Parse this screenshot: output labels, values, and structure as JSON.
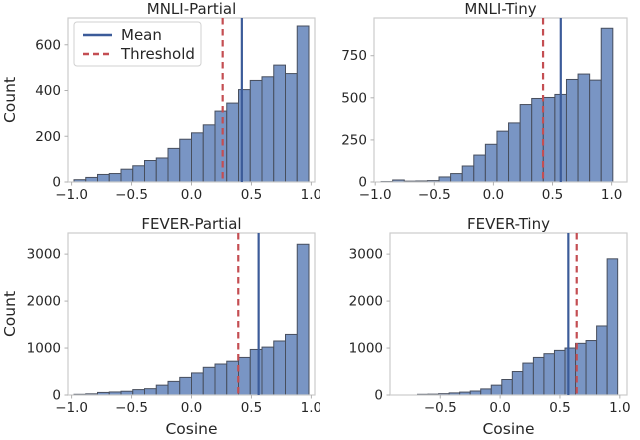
{
  "colors": {
    "bar_fill": "#7995c4",
    "bar_edge": "#474e5d",
    "mean": "#3b5b99",
    "threshold": "#c44e52",
    "text": "#262626",
    "spine": "#cccccc",
    "tick": "#b0b0b0",
    "legend_border": "#d0d0d0",
    "background": "#ffffff"
  },
  "labels": {
    "ylabel": "Count",
    "xlabel": "Cosine"
  },
  "legend": {
    "items": [
      {
        "label": "Mean",
        "style": "solid",
        "color_key": "mean"
      },
      {
        "label": "Threshold",
        "style": "dashed",
        "color_key": "threshold"
      }
    ]
  },
  "chart_data": [
    {
      "type": "bar",
      "title": "MNLI-Partial",
      "xlabel_shown": false,
      "ylabel_shown": true,
      "legend_shown": true,
      "xlim": [
        -1.03,
        1.03
      ],
      "ylim": [
        0,
        717
      ],
      "xticks": [
        -1.0,
        -0.5,
        0.0,
        0.5,
        1.0
      ],
      "xtick_labels": [
        "−1.0",
        "−0.5",
        "0.0",
        "0.5",
        "1.0"
      ],
      "yticks": [
        0,
        200,
        400,
        600
      ],
      "ytick_labels": [
        "0",
        "200",
        "400",
        "600"
      ],
      "bin_start": -0.98,
      "bin_width": 0.098,
      "counts": [
        10,
        20,
        33,
        37,
        56,
        71,
        94,
        105,
        147,
        187,
        215,
        250,
        310,
        345,
        404,
        444,
        460,
        511,
        474,
        682
      ],
      "mean": 0.42,
      "threshold": 0.26
    },
    {
      "type": "bar",
      "title": "MNLI-Tiny",
      "xlabel_shown": false,
      "ylabel_shown": false,
      "legend_shown": false,
      "xlim": [
        -1.01,
        1.13
      ],
      "ylim": [
        0,
        974
      ],
      "xticks": [
        -1.0,
        -0.5,
        0.0,
        0.5,
        1.0
      ],
      "xtick_labels": [
        "−1.0",
        "−0.5",
        "0.0",
        "0.5",
        "1.0"
      ],
      "yticks": [
        0,
        250,
        500,
        750
      ],
      "ytick_labels": [
        "0",
        "250",
        "500",
        "750"
      ],
      "bin_start": -0.95,
      "bin_width": 0.098,
      "counts": [
        3,
        12,
        5,
        6,
        8,
        30,
        50,
        95,
        160,
        224,
        302,
        351,
        460,
        496,
        502,
        520,
        609,
        641,
        605,
        913
      ],
      "mean": 0.57,
      "threshold": 0.42
    },
    {
      "type": "bar",
      "title": "FEVER-Partial",
      "xlabel_shown": true,
      "ylabel_shown": true,
      "legend_shown": false,
      "xlim": [
        -1.03,
        1.03
      ],
      "ylim": [
        0,
        3450
      ],
      "xticks": [
        -1.0,
        -0.5,
        0.0,
        0.5,
        1.0
      ],
      "xtick_labels": [
        "−1.0",
        "−0.5",
        "0.0",
        "0.5",
        "1.0"
      ],
      "yticks": [
        0,
        1000,
        2000,
        3000
      ],
      "ytick_labels": [
        "0",
        "1000",
        "2000",
        "3000"
      ],
      "bin_start": -0.98,
      "bin_width": 0.098,
      "counts": [
        15,
        25,
        55,
        65,
        80,
        115,
        135,
        210,
        290,
        375,
        470,
        590,
        660,
        720,
        800,
        970,
        1020,
        1150,
        1290,
        3210
      ],
      "mean": 0.56,
      "threshold": 0.39
    },
    {
      "type": "bar",
      "title": "FEVER-Tiny",
      "xlabel_shown": true,
      "ylabel_shown": false,
      "legend_shown": false,
      "xlim": [
        -0.92,
        1.06
      ],
      "ylim": [
        0,
        3450
      ],
      "xticks": [
        -0.5,
        0.0,
        0.5,
        1.0
      ],
      "xtick_labels": [
        "−0.5",
        "0.0",
        "0.5",
        "1.0"
      ],
      "yticks": [
        0,
        1000,
        2000,
        3000
      ],
      "ytick_labels": [
        "0",
        "1000",
        "2000",
        "3000"
      ],
      "bin_start": -0.69,
      "bin_width": 0.088,
      "counts": [
        15,
        18,
        28,
        45,
        62,
        85,
        130,
        210,
        330,
        500,
        680,
        800,
        880,
        950,
        1000,
        1100,
        1160,
        1470,
        2900
      ],
      "mean": 0.57,
      "threshold": 0.64
    }
  ]
}
